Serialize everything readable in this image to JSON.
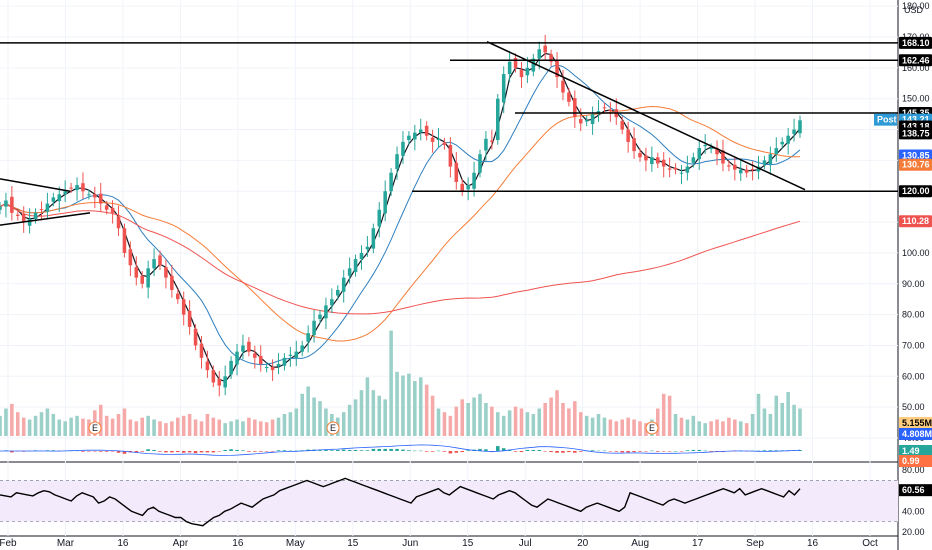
{
  "chart_data": {
    "type": "candlestick",
    "currency": "USD",
    "x_ticks": [
      "Feb",
      "Mar",
      "16",
      "Apr",
      "16",
      "May",
      "15",
      "Jun",
      "15",
      "Jul",
      "20",
      "Aug",
      "17",
      "Sep",
      "16",
      "Oct"
    ],
    "price_ticks": [
      40.0,
      50.0,
      60.0,
      70.0,
      80.0,
      90.0,
      100.0,
      110.0,
      120.0,
      130.0,
      140.0,
      150.0,
      160.0,
      170.0,
      180.0
    ],
    "price_range": [
      40,
      182
    ],
    "horizontal_levels": [
      168.1,
      162.46,
      145.35,
      120.0
    ],
    "price_labels": [
      {
        "value": "168.10",
        "price": 168.1,
        "color": "#000000"
      },
      {
        "value": "162.46",
        "price": 162.46,
        "color": "#000000"
      },
      {
        "value": "145.35",
        "price": 145.35,
        "color": "#000000"
      },
      {
        "value": "143.21",
        "price": 143.21,
        "color": "#2f9bd6",
        "prefix": "Post"
      },
      {
        "value": "143.18",
        "price": 141.0,
        "color": "#ffffff"
      },
      {
        "value": "138.75",
        "price": 138.75,
        "color": "#000000"
      },
      {
        "value": "130.85",
        "price": 131.6,
        "color": "#2962ff"
      },
      {
        "value": "130.76",
        "price": 128.6,
        "color": "#f57c38"
      },
      {
        "value": "120.00",
        "price": 120.0,
        "color": "#000000"
      },
      {
        "value": "110.28",
        "price": 110.28,
        "color": "#ef5350"
      }
    ],
    "closes": [
      115,
      117,
      113,
      112,
      110,
      111,
      113,
      114,
      116,
      118,
      119,
      120,
      121,
      122,
      120,
      119,
      118,
      116,
      114,
      113,
      108,
      100,
      96,
      92,
      90,
      95,
      98,
      96,
      92,
      88,
      85,
      80,
      76,
      70,
      66,
      62,
      58,
      57,
      60,
      65,
      68,
      70,
      68,
      66,
      64,
      63,
      62,
      64,
      66,
      67,
      68,
      70,
      74,
      78,
      80,
      83,
      85,
      88,
      92,
      95,
      98,
      100,
      102,
      108,
      114,
      120,
      126,
      132,
      136,
      138,
      139,
      140,
      138,
      136,
      137,
      135,
      128,
      123,
      120,
      122,
      126,
      132,
      137,
      136,
      150,
      158,
      162,
      160,
      157,
      160,
      163,
      166,
      165,
      162,
      157,
      152,
      149,
      144,
      142,
      143,
      145,
      146,
      147,
      146,
      144,
      140,
      136,
      133,
      131,
      130,
      131,
      129,
      128,
      127,
      127,
      126,
      128,
      131,
      134,
      135,
      134,
      132,
      129,
      128,
      127,
      127,
      126,
      127,
      128,
      130,
      132,
      134,
      136,
      138,
      140,
      143
    ],
    "ma_fast_last": 130.85,
    "ma_mid_last": 130.76,
    "ma_slow_last": 110.28,
    "earnings_markers": [
      "E",
      "E",
      "E"
    ],
    "volume": {
      "label": "5.155M",
      "ma_label": "4.808M",
      "values": [
        2.2,
        3.0,
        3.5,
        2.6,
        2.0,
        1.8,
        2.2,
        2.6,
        3.0,
        2.4,
        1.8,
        1.6,
        2.0,
        2.2,
        1.9,
        1.8,
        2.8,
        3.4,
        2.2,
        1.9,
        2.4,
        3.0,
        1.8,
        1.6,
        2.0,
        2.2,
        1.8,
        1.6,
        1.4,
        1.6,
        2.0,
        2.2,
        2.4,
        1.8,
        1.6,
        2.4,
        2.0,
        1.8,
        1.4,
        1.6,
        1.8,
        1.6,
        2.0,
        1.8,
        1.6,
        1.5,
        1.8,
        2.0,
        2.4,
        2.6,
        3.0,
        4.6,
        5.4,
        4.2,
        3.8,
        3.0,
        2.4,
        2.0,
        2.6,
        3.4,
        4.0,
        5.0,
        6.4,
        5.0,
        4.4,
        4.0,
        11.5,
        7.0,
        6.6,
        6.8,
        6.0,
        6.4,
        5.6,
        4.4,
        3.0,
        2.6,
        2.2,
        3.2,
        4.0,
        3.6,
        4.2,
        4.6,
        3.6,
        3.2,
        2.6,
        2.2,
        2.8,
        3.2,
        3.0,
        2.6,
        2.4,
        3.0,
        3.6,
        4.2,
        5.0,
        3.6,
        3.0,
        3.8,
        2.6,
        2.2,
        2.0,
        2.4,
        2.0,
        1.8,
        1.6,
        1.8,
        2.0,
        1.8,
        1.6,
        1.4,
        1.8,
        3.0,
        4.6,
        4.4,
        2.4,
        2.0,
        1.8,
        2.2,
        1.6,
        1.4,
        1.6,
        1.8,
        1.6,
        2.0,
        1.8,
        1.6,
        1.4,
        2.4,
        4.6,
        3.0,
        2.4,
        4.4,
        3.6,
        4.8,
        3.4,
        3.0
      ]
    },
    "macd": {
      "labels": [
        "1.49",
        "0.99"
      ],
      "colors": [
        "#26a69a",
        "#ff7043"
      ]
    },
    "rsi": {
      "label": "60.56",
      "ticks": [
        20.0,
        40.0,
        60.0,
        80.0
      ],
      "bounds": [
        30,
        70
      ],
      "values": [
        56,
        55,
        54,
        58,
        57,
        56,
        55,
        58,
        60,
        59,
        56,
        54,
        52,
        50,
        55,
        58,
        56,
        54,
        48,
        50,
        54,
        52,
        48,
        44,
        40,
        38,
        36,
        42,
        44,
        40,
        38,
        36,
        34,
        34,
        30,
        28,
        27,
        26,
        30,
        34,
        36,
        40,
        42,
        45,
        48,
        46,
        44,
        48,
        52,
        54,
        56,
        60,
        62,
        64,
        66,
        68,
        70,
        68,
        66,
        64,
        66,
        68,
        70,
        72,
        70,
        68,
        66,
        64,
        62,
        60,
        58,
        56,
        54,
        52,
        50,
        48,
        54,
        56,
        58,
        60,
        62,
        58,
        56,
        60,
        64,
        62,
        60,
        58,
        56,
        54,
        52,
        56,
        58,
        60,
        58,
        54,
        50,
        46,
        44,
        48,
        52,
        50,
        48,
        46,
        44,
        42,
        40,
        44,
        46,
        48,
        46,
        44,
        42,
        40,
        44,
        58,
        56,
        54,
        52,
        50,
        48,
        46,
        50,
        52,
        50,
        48,
        50,
        52,
        54,
        56,
        58,
        60,
        62,
        60,
        58,
        62,
        56,
        58,
        60,
        62,
        60,
        58,
        56,
        54,
        60,
        56,
        62
      ]
    }
  }
}
